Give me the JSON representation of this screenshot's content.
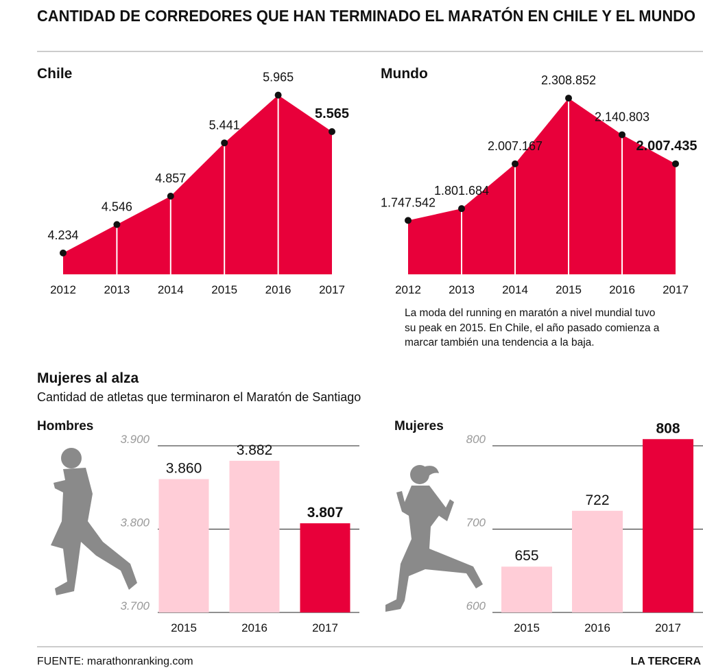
{
  "title": "CANTIDAD DE CORREDORES QUE HAN TERMINADO EL  MARATÓN EN CHILE Y EL MUNDO",
  "note": [
    "La moda del running en maratón a nivel mundial tuvo",
    "su peak en 2015. En Chile, el año pasado comienza a",
    "marcar también una tendencia a la baja."
  ],
  "section_title": "Mujeres al alza",
  "section_subtitle": "Cantidad de atletas que terminaron el Maratón de Santiago",
  "source": "FUENTE: marathonranking.com",
  "brand": "LA TERCERA",
  "chart_data": [
    {
      "type": "area",
      "title": "Chile",
      "categories": [
        "2012",
        "2013",
        "2014",
        "2015",
        "2016",
        "2017"
      ],
      "values": [
        4234,
        4546,
        4857,
        5441,
        5965,
        5565
      ],
      "value_labels": [
        "4.234",
        "4.546",
        "4.857",
        "5.441",
        "5.965",
        "5.565"
      ],
      "color": "#e8003a",
      "ylim": [
        4000,
        6000
      ]
    },
    {
      "type": "area",
      "title": "Mundo",
      "categories": [
        "2012",
        "2013",
        "2014",
        "2015",
        "2016",
        "2017"
      ],
      "values": [
        1747542,
        1801684,
        2007167,
        2308852,
        2140803,
        2007435
      ],
      "value_labels": [
        "1.747.542",
        "1.801.684",
        "2.007.167",
        "2.308.852",
        "2.140.803",
        "2.007.435"
      ],
      "color": "#e8003a",
      "ylim": [
        1500000,
        2350000
      ]
    },
    {
      "type": "bar",
      "title": "Hombres",
      "categories": [
        "2015",
        "2016",
        "2017"
      ],
      "values": [
        3860,
        3882,
        3807
      ],
      "value_labels": [
        "3.860",
        "3.882",
        "3.807"
      ],
      "colors": [
        "#ffcdd7",
        "#ffcdd7",
        "#e8003a"
      ],
      "ylim": [
        3700,
        3900
      ],
      "yticks": [
        {
          "value": 3700,
          "label": "3.700"
        },
        {
          "value": 3800,
          "label": "3.800"
        },
        {
          "value": 3900,
          "label": "3.900"
        }
      ],
      "grid": true
    },
    {
      "type": "bar",
      "title": "Mujeres",
      "categories": [
        "2015",
        "2016",
        "2017"
      ],
      "values": [
        655,
        722,
        808
      ],
      "colors": [
        "#ffcdd7",
        "#ffcdd7",
        "#e8003a"
      ],
      "ylim": [
        600,
        800
      ],
      "yticks": [
        600,
        700,
        800
      ],
      "grid": true
    }
  ]
}
